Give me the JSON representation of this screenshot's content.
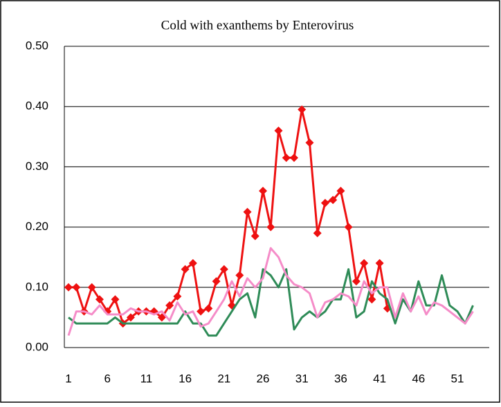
{
  "chart_data": {
    "type": "line",
    "title": "Cold with exanthems by Enterovirus",
    "categories": [
      "1",
      null,
      null,
      null,
      null,
      "6",
      null,
      null,
      null,
      null,
      "11",
      null,
      null,
      null,
      null,
      "16",
      null,
      null,
      null,
      null,
      "21",
      null,
      null,
      null,
      null,
      "26",
      null,
      null,
      null,
      null,
      "31",
      null,
      null,
      null,
      null,
      "36",
      null,
      null,
      null,
      null,
      "41",
      null,
      null,
      null,
      null,
      "46",
      null,
      null,
      null,
      null,
      "51",
      null,
      null
    ],
    "series": [
      {
        "color": "#ee1111",
        "marker": "diamond",
        "values": [
          0.1,
          0.1,
          0.06,
          0.1,
          0.08,
          0.06,
          0.08,
          0.04,
          0.05,
          0.06,
          0.06,
          0.06,
          0.05,
          0.07,
          0.085,
          0.13,
          0.14,
          0.06,
          0.065,
          0.11,
          0.13,
          0.07,
          0.12,
          0.225,
          0.185,
          0.26,
          0.2,
          0.36,
          0.315,
          0.315,
          0.395,
          0.34,
          0.19,
          0.24,
          0.245,
          0.26,
          0.2,
          0.11,
          0.14,
          0.08,
          0.14,
          0.065,
          null,
          null,
          null,
          null,
          null,
          null,
          null,
          null,
          null,
          null,
          null
        ]
      },
      {
        "color": "#2e8b57",
        "values": [
          0.05,
          0.04,
          0.04,
          0.04,
          0.04,
          0.04,
          0.05,
          0.04,
          0.04,
          0.04,
          0.04,
          0.04,
          0.04,
          0.04,
          0.04,
          0.06,
          0.04,
          0.04,
          0.02,
          0.02,
          0.04,
          0.06,
          0.08,
          0.09,
          0.05,
          0.13,
          0.12,
          0.1,
          0.13,
          0.03,
          0.05,
          0.06,
          0.05,
          0.06,
          0.08,
          0.08,
          0.13,
          0.05,
          0.06,
          0.11,
          0.09,
          0.08,
          0.04,
          0.08,
          0.06,
          0.11,
          0.07,
          0.07,
          0.12,
          0.07,
          0.06,
          0.04,
          0.07
        ]
      },
      {
        "color": "#f58cc8",
        "values": [
          0.02,
          0.06,
          0.06,
          0.055,
          0.07,
          0.055,
          0.055,
          0.055,
          0.065,
          0.06,
          0.06,
          0.055,
          0.06,
          0.045,
          0.075,
          0.055,
          0.06,
          0.035,
          0.04,
          0.06,
          0.08,
          0.11,
          0.085,
          0.115,
          0.1,
          0.115,
          0.165,
          0.15,
          0.12,
          0.105,
          0.1,
          0.09,
          0.05,
          0.075,
          0.08,
          0.09,
          0.085,
          0.07,
          0.11,
          0.09,
          0.1,
          0.1,
          0.05,
          0.09,
          0.06,
          0.085,
          0.055,
          0.075,
          0.07,
          0.06,
          0.05,
          0.04,
          0.06
        ]
      }
    ],
    "ylim": [
      0,
      0.5
    ],
    "yticks": [
      {
        "value": 0,
        "label": "0.00"
      },
      {
        "value": 0.1,
        "label": "0.10"
      },
      {
        "value": 0.2,
        "label": "0.20"
      },
      {
        "value": 0.3,
        "label": "0.30"
      },
      {
        "value": 0.4,
        "label": "0.40"
      },
      {
        "value": 0.5,
        "label": "0.50"
      }
    ],
    "grid": true
  }
}
